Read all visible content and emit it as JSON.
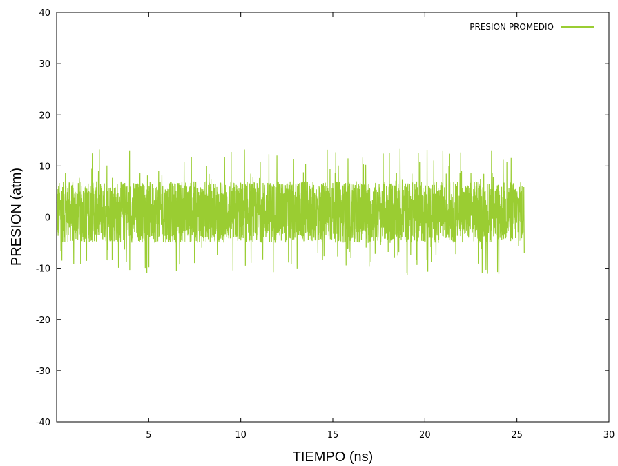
{
  "chart_data": {
    "type": "line",
    "title": "",
    "xlabel": "TIEMPO (ns)",
    "ylabel": "PRESION (atm)",
    "xlim": [
      0,
      30
    ],
    "ylim": [
      -40,
      40
    ],
    "x_ticks": [
      5,
      10,
      15,
      20,
      25,
      30
    ],
    "y_ticks": [
      -40,
      -30,
      -20,
      -10,
      0,
      10,
      20,
      30,
      40
    ],
    "grid": false,
    "legend_position": "top-right",
    "series": [
      {
        "name": "PRESION PROMEDIO",
        "color": "#9acd32",
        "x_range": [
          0,
          25.4
        ],
        "mean": 1,
        "typical_range": [
          -5,
          7
        ],
        "max": 13.5,
        "min": -11.3
      }
    ]
  }
}
